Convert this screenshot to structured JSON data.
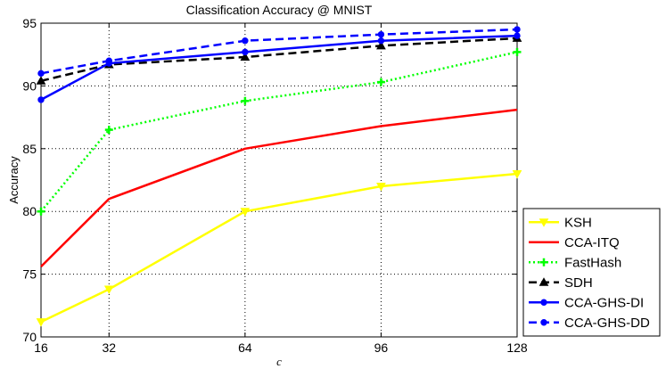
{
  "chart_data": {
    "type": "line",
    "title": "Classification Accuracy @ MNIST",
    "xlabel": "c",
    "ylabel": "Accuracy",
    "x": [
      16,
      32,
      64,
      96,
      128
    ],
    "x_tick_labels": [
      "16",
      "32",
      "64",
      "96",
      "128"
    ],
    "xlim": [
      16,
      128
    ],
    "ylim": [
      70,
      95
    ],
    "y_ticks": [
      70,
      75,
      80,
      85,
      90,
      95
    ],
    "grid": true,
    "legend_position": "bottom-right outside",
    "series": [
      {
        "name": "KSH",
        "values": [
          71.2,
          73.8,
          80.0,
          82.0,
          83.0
        ],
        "color": "#ffff00",
        "dash": "solid",
        "marker": "triangle-down"
      },
      {
        "name": "CCA-ITQ",
        "values": [
          75.6,
          81.0,
          85.0,
          86.8,
          88.1
        ],
        "color": "#ff0000",
        "dash": "solid",
        "marker": "none"
      },
      {
        "name": "FastHash",
        "values": [
          80.0,
          86.5,
          88.8,
          90.3,
          92.7
        ],
        "color": "#00ff00",
        "dash": "dotted",
        "marker": "plus"
      },
      {
        "name": "SDH",
        "values": [
          90.4,
          91.7,
          92.3,
          93.2,
          93.8
        ],
        "color": "#000000",
        "dash": "dashed",
        "marker": "triangle-up"
      },
      {
        "name": "CCA-GHS-DI",
        "values": [
          88.9,
          91.8,
          92.7,
          93.6,
          94.0
        ],
        "color": "#0000ff",
        "dash": "solid",
        "marker": "circle"
      },
      {
        "name": "CCA-GHS-DD",
        "values": [
          91.0,
          92.0,
          93.6,
          94.1,
          94.5
        ],
        "color": "#0000ff",
        "dash": "dashed",
        "marker": "circle"
      }
    ]
  }
}
